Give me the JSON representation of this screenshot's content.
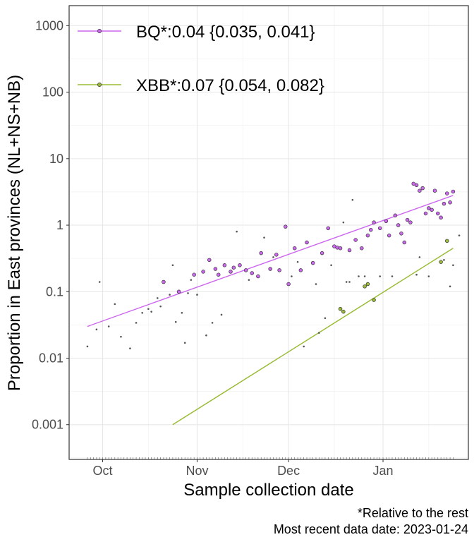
{
  "chart_data": {
    "type": "scatter",
    "xlabel": "Sample collection date",
    "ylabel": "Proportion in East provinces (NL+NS+NB)",
    "y_scale": "log",
    "y_ticks": [
      {
        "value": 1000,
        "label": "1000"
      },
      {
        "value": 100,
        "label": "100"
      },
      {
        "value": 10,
        "label": "10"
      },
      {
        "value": 1,
        "label": "1"
      },
      {
        "value": 0.1,
        "label": "0.1"
      },
      {
        "value": 0.01,
        "label": "0.01"
      },
      {
        "value": 0.001,
        "label": "0.001"
      }
    ],
    "x_ticks": [
      {
        "value": "2022-10-01",
        "label": "Oct"
      },
      {
        "value": "2022-11-01",
        "label": "Nov"
      },
      {
        "value": "2022-12-01",
        "label": "Dec"
      },
      {
        "value": "2023-01-01",
        "label": "Jan"
      }
    ],
    "xlim": [
      "2022-09-20",
      "2023-01-29"
    ],
    "ylim": [
      0.0003,
      2000
    ],
    "grid": true,
    "legend_position": "top-left",
    "series": [
      {
        "name": "BQ*:0.04 {0.035, 0.041}",
        "color": "#cc66ee",
        "fit": [
          {
            "x": "2022-09-26",
            "y": 0.03
          },
          {
            "x": "2023-01-24",
            "y": 2.8
          }
        ],
        "points": [
          {
            "x": "2022-10-21",
            "y": 0.14
          },
          {
            "x": "2022-10-26",
            "y": 0.1
          },
          {
            "x": "2022-10-31",
            "y": 0.18
          },
          {
            "x": "2022-11-03",
            "y": 0.2
          },
          {
            "x": "2022-11-05",
            "y": 0.3
          },
          {
            "x": "2022-11-07",
            "y": 0.22
          },
          {
            "x": "2022-11-08",
            "y": 0.18
          },
          {
            "x": "2022-11-10",
            "y": 0.25
          },
          {
            "x": "2022-11-12",
            "y": 0.2
          },
          {
            "x": "2022-11-13",
            "y": 0.23
          },
          {
            "x": "2022-11-15",
            "y": 0.25
          },
          {
            "x": "2022-11-17",
            "y": 0.21
          },
          {
            "x": "2022-11-19",
            "y": 0.19
          },
          {
            "x": "2022-11-21",
            "y": 0.17
          },
          {
            "x": "2022-11-22",
            "y": 0.38
          },
          {
            "x": "2022-11-25",
            "y": 0.22
          },
          {
            "x": "2022-11-27",
            "y": 0.36
          },
          {
            "x": "2022-11-28",
            "y": 0.21
          },
          {
            "x": "2022-11-30",
            "y": 0.95
          },
          {
            "x": "2022-12-01",
            "y": 0.13
          },
          {
            "x": "2022-12-03",
            "y": 0.45
          },
          {
            "x": "2022-12-05",
            "y": 0.21
          },
          {
            "x": "2022-12-07",
            "y": 0.55
          },
          {
            "x": "2022-12-09",
            "y": 0.27
          },
          {
            "x": "2022-12-12",
            "y": 0.38
          },
          {
            "x": "2022-12-14",
            "y": 0.9
          },
          {
            "x": "2022-12-16",
            "y": 0.48
          },
          {
            "x": "2022-12-17",
            "y": 0.46
          },
          {
            "x": "2022-12-18",
            "y": 0.45
          },
          {
            "x": "2022-12-21",
            "y": 0.42
          },
          {
            "x": "2022-12-23",
            "y": 0.6
          },
          {
            "x": "2022-12-25",
            "y": 0.45
          },
          {
            "x": "2022-12-27",
            "y": 0.7
          },
          {
            "x": "2022-12-28",
            "y": 0.85
          },
          {
            "x": "2022-12-29",
            "y": 1.1
          },
          {
            "x": "2022-12-31",
            "y": 0.9
          },
          {
            "x": "2023-01-02",
            "y": 1.15
          },
          {
            "x": "2023-01-03",
            "y": 0.7
          },
          {
            "x": "2023-01-05",
            "y": 1.4
          },
          {
            "x": "2023-01-06",
            "y": 1.0
          },
          {
            "x": "2023-01-07",
            "y": 0.75
          },
          {
            "x": "2023-01-08",
            "y": 0.55
          },
          {
            "x": "2023-01-09",
            "y": 1.2
          },
          {
            "x": "2023-01-10",
            "y": 1.1
          },
          {
            "x": "2023-01-11",
            "y": 4.2
          },
          {
            "x": "2023-01-12",
            "y": 4.0
          },
          {
            "x": "2023-01-13",
            "y": 3.3
          },
          {
            "x": "2023-01-14",
            "y": 3.6
          },
          {
            "x": "2023-01-15",
            "y": 1.5
          },
          {
            "x": "2023-01-16",
            "y": 1.8
          },
          {
            "x": "2023-01-17",
            "y": 1.7
          },
          {
            "x": "2023-01-18",
            "y": 3.3
          },
          {
            "x": "2023-01-19",
            "y": 1.5
          },
          {
            "x": "2023-01-20",
            "y": 1.3
          },
          {
            "x": "2023-01-21",
            "y": 2.1
          },
          {
            "x": "2023-01-22",
            "y": 3.0
          },
          {
            "x": "2023-01-23",
            "y": 2.2
          },
          {
            "x": "2023-01-24",
            "y": 3.2
          }
        ]
      },
      {
        "name": "XBB*:0.07 {0.054, 0.082}",
        "color": "#99bb33",
        "fit": [
          {
            "x": "2022-10-24",
            "y": 0.001
          },
          {
            "x": "2023-01-24",
            "y": 0.45
          }
        ],
        "points": [
          {
            "x": "2022-12-18",
            "y": 0.055
          },
          {
            "x": "2022-12-19",
            "y": 0.05
          },
          {
            "x": "2022-12-26",
            "y": 0.12
          },
          {
            "x": "2022-12-27",
            "y": 0.13
          },
          {
            "x": "2022-12-29",
            "y": 0.075
          },
          {
            "x": "2023-01-20",
            "y": 0.28
          },
          {
            "x": "2023-01-22",
            "y": 0.58
          }
        ]
      }
    ],
    "other_points": [
      {
        "x": "2022-09-26",
        "y": 0.015
      },
      {
        "x": "2022-09-29",
        "y": 0.027
      },
      {
        "x": "2022-09-30",
        "y": 0.14
      },
      {
        "x": "2022-10-03",
        "y": 0.03
      },
      {
        "x": "2022-10-05",
        "y": 0.065
      },
      {
        "x": "2022-10-07",
        "y": 0.021
      },
      {
        "x": "2022-10-10",
        "y": 0.014
      },
      {
        "x": "2022-10-12",
        "y": 0.034
      },
      {
        "x": "2022-10-14",
        "y": 0.048
      },
      {
        "x": "2022-10-16",
        "y": 0.055
      },
      {
        "x": "2022-10-17",
        "y": 0.05
      },
      {
        "x": "2022-10-19",
        "y": 0.08
      },
      {
        "x": "2022-10-20",
        "y": 0.06
      },
      {
        "x": "2022-10-23",
        "y": 0.09
      },
      {
        "x": "2022-10-24",
        "y": 0.25
      },
      {
        "x": "2022-10-25",
        "y": 0.035
      },
      {
        "x": "2022-10-27",
        "y": 0.048
      },
      {
        "x": "2022-10-28",
        "y": 0.017
      },
      {
        "x": "2022-10-29",
        "y": 0.095
      },
      {
        "x": "2022-10-30",
        "y": 0.15
      },
      {
        "x": "2022-11-01",
        "y": 0.09
      },
      {
        "x": "2022-11-04",
        "y": 0.022
      },
      {
        "x": "2022-11-06",
        "y": 0.034
      },
      {
        "x": "2022-11-09",
        "y": 0.045
      },
      {
        "x": "2022-11-14",
        "y": 0.8
      },
      {
        "x": "2022-11-18",
        "y": 0.15
      },
      {
        "x": "2022-11-23",
        "y": 0.65
      },
      {
        "x": "2022-11-26",
        "y": 0.33
      },
      {
        "x": "2022-12-02",
        "y": 0.17
      },
      {
        "x": "2022-12-04",
        "y": 0.28
      },
      {
        "x": "2022-12-06",
        "y": 0.015
      },
      {
        "x": "2022-12-10",
        "y": 0.13
      },
      {
        "x": "2022-12-11",
        "y": 0.024
      },
      {
        "x": "2022-12-13",
        "y": 0.04
      },
      {
        "x": "2022-12-15",
        "y": 0.25
      },
      {
        "x": "2022-12-19",
        "y": 1.1
      },
      {
        "x": "2022-12-20",
        "y": 0.14
      },
      {
        "x": "2022-12-21",
        "y": 0.14
      },
      {
        "x": "2022-12-22",
        "y": 2.4
      },
      {
        "x": "2022-12-24",
        "y": 0.17
      },
      {
        "x": "2022-12-26",
        "y": 0.17
      },
      {
        "x": "2022-12-31",
        "y": 0.17
      },
      {
        "x": "2023-01-04",
        "y": 0.17
      },
      {
        "x": "2023-01-12",
        "y": 0.18
      },
      {
        "x": "2023-01-13",
        "y": 0.33
      },
      {
        "x": "2023-01-16",
        "y": 0.17
      },
      {
        "x": "2023-01-21",
        "y": 0.3
      },
      {
        "x": "2023-01-23",
        "y": 0.12
      },
      {
        "x": "2023-01-24",
        "y": 0.25
      },
      {
        "x": "2023-01-26",
        "y": 0.7
      }
    ]
  },
  "caption": {
    "line1": "*Relative to the rest",
    "line2": "Most recent data date: 2023-01-24"
  }
}
